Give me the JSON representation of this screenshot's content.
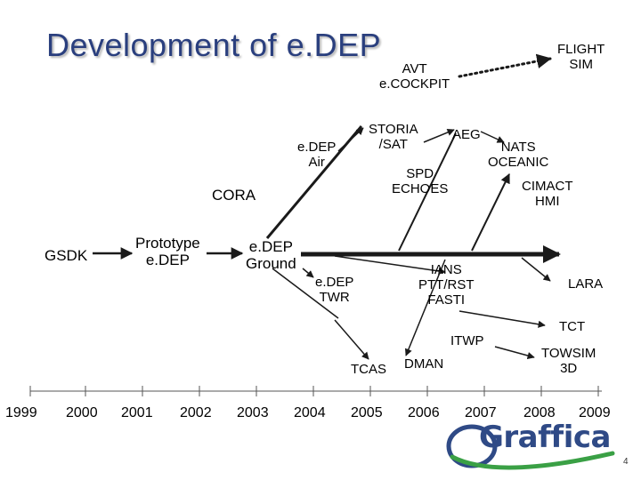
{
  "slide": {
    "title": "Development of e.DEP",
    "page_number": "4"
  },
  "labels": {
    "flight_sim": "FLIGHT\nSIM",
    "avt_cockpit": "AVT\ne.COCKPIT",
    "storia_sat": "STORIA\n/SAT",
    "aeg": "AEG",
    "nats_oceanic": "NATS\nOCEANIC",
    "edep_air": "e.DEP\nAir",
    "spd_echoes": "SPD\nECHOES",
    "cimact_hmi": "CIMACT\nHMI",
    "cora": "CORA",
    "gsdk": "GSDK",
    "prototype_edep": "Prototype\ne.DEP",
    "edep_ground": "e.DEP\nGround",
    "edep_twr": "e.DEP\nTWR",
    "ians": "IANS\nPTT/RST\nFASTI",
    "lara": "LARA",
    "tct": "TCT",
    "itwp": "ITWP",
    "towsim": "TOWSIM\n3D",
    "tcas": "TCAS",
    "dman": "DMAN"
  },
  "timeline": {
    "years": [
      "1999",
      "2000",
      "2001",
      "2002",
      "2003",
      "2004",
      "2005",
      "2006",
      "2007",
      "2008",
      "2009"
    ]
  },
  "logo": {
    "text": "Graffica"
  },
  "colors": {
    "title": "#2a3f7e",
    "line": "#1a1a1a",
    "logo": "#2f4a86",
    "logo_accent": "#3aa045"
  }
}
